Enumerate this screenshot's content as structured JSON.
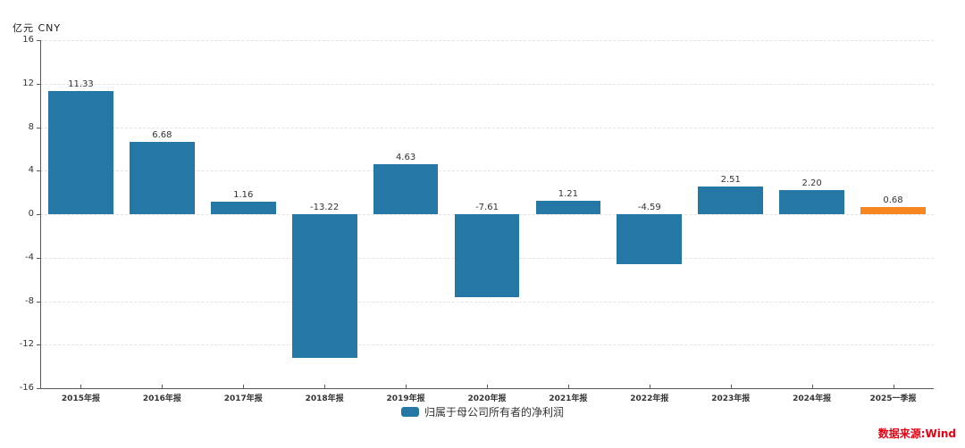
{
  "header": {
    "unit_label": "亿元 CNY"
  },
  "source": {
    "label": "数据来源:Wind",
    "color": "#e60012"
  },
  "legend": {
    "label": "归属于母公司所有者的净利润",
    "swatch_color": "#2577a5"
  },
  "chart_data": {
    "type": "bar",
    "title": "",
    "xlabel": "",
    "ylabel": "亿元 CNY",
    "categories": [
      "2015年报",
      "2016年报",
      "2017年报",
      "2018年报",
      "2019年报",
      "2020年报",
      "2021年报",
      "2022年报",
      "2023年报",
      "2024年报",
      "2025一季报"
    ],
    "values": [
      11.33,
      6.68,
      1.16,
      -13.22,
      4.63,
      -7.61,
      1.21,
      -4.59,
      2.51,
      2.2,
      0.68
    ],
    "value_labels": [
      "11.33",
      "6.68",
      "1.16",
      "-13.22",
      "4.63",
      "-7.61",
      "1.21",
      "-4.59",
      "2.51",
      "2.20",
      "0.68"
    ],
    "series_name": "归属于母公司所有者的净利润",
    "default_color": "#2577a5",
    "highlight_color": "#f6861f",
    "bar_colors": [
      "#2577a5",
      "#2577a5",
      "#2577a5",
      "#2577a5",
      "#2577a5",
      "#2577a5",
      "#2577a5",
      "#2577a5",
      "#2577a5",
      "#2577a5",
      "#f6861f"
    ],
    "ylim": [
      -16,
      16
    ],
    "yticks": [
      16,
      12,
      8,
      4,
      0,
      -4,
      -8,
      -12,
      -16
    ],
    "grid": "dashed-horizontal",
    "legend_position": "bottom"
  }
}
